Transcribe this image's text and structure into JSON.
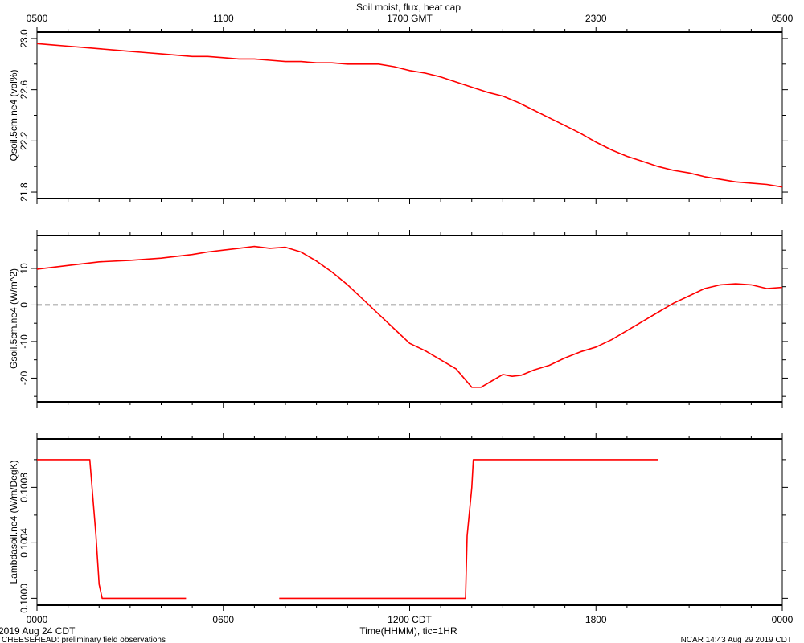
{
  "chart_data": {
    "title": "Soil moist, flux, heat cap",
    "top_axis": {
      "tick_labels": [
        "0500",
        "1100",
        "1700 GMT",
        "2300",
        "0500"
      ],
      "tick_hours": [
        0,
        6,
        12,
        18,
        24
      ]
    },
    "bottom_axis": {
      "tick_labels": [
        "0000",
        "0600",
        "1200 CDT",
        "1800",
        "0000"
      ],
      "tick_hours": [
        0,
        6,
        12,
        18,
        24
      ],
      "xlabel": "Time(HHMM), tic=1HR",
      "xlim": [
        0,
        24
      ]
    },
    "footer": {
      "date": "2019 Aug 24 CDT",
      "project": "CHEESEHEAD: preliminary field observations",
      "credit": "NCAR 14:43 Aug 29 2019 CDT"
    },
    "line_color": "#ff0000",
    "panels": [
      {
        "type": "line",
        "ylabel": "Qsoil.5cm.ne4 (vol%)",
        "ylim": [
          21.75,
          23.05
        ],
        "yticks": [
          21.8,
          22.2,
          22.6,
          23.0
        ],
        "ytick_labels": [
          "21.8",
          "22.2",
          "22.6",
          "23.0"
        ],
        "zero_line": false,
        "segments": [
          {
            "x": [
              0,
              0.5,
              1,
              1.5,
              2,
              2.5,
              3,
              3.5,
              4,
              4.5,
              5,
              5.5,
              6,
              6.5,
              7,
              7.5,
              8,
              8.5,
              9,
              9.5,
              10,
              10.5,
              11,
              11.5,
              12,
              12.5,
              13,
              13.5,
              14,
              14.5,
              15,
              15.5,
              16,
              16.5,
              17,
              17.5,
              18,
              18.5,
              19,
              19.5,
              20,
              20.5,
              21,
              21.5,
              22,
              22.5,
              23,
              23.5,
              24
            ],
            "y": [
              22.96,
              22.95,
              22.94,
              22.93,
              22.92,
              22.91,
              22.9,
              22.89,
              22.88,
              22.87,
              22.86,
              22.86,
              22.85,
              22.84,
              22.84,
              22.83,
              22.82,
              22.82,
              22.81,
              22.81,
              22.8,
              22.8,
              22.8,
              22.78,
              22.75,
              22.73,
              22.7,
              22.66,
              22.62,
              22.58,
              22.55,
              22.5,
              22.44,
              22.38,
              22.32,
              22.26,
              22.19,
              22.13,
              22.08,
              22.04,
              22.0,
              21.97,
              21.95,
              21.92,
              21.9,
              21.88,
              21.87,
              21.86,
              21.84
            ]
          }
        ]
      },
      {
        "type": "line",
        "ylabel": "Gsoil.5cm.ne4 (W/m^2)",
        "ylim": [
          -26.5,
          19
        ],
        "yticks": [
          -20,
          -10,
          0,
          10
        ],
        "ytick_labels": [
          "-20",
          "-10",
          "0",
          "10"
        ],
        "zero_line": true,
        "segments": [
          {
            "x": [
              0,
              1,
              2,
              3,
              4,
              5,
              5.5,
              6,
              6.5,
              7,
              7.5,
              8,
              8.5,
              9,
              9.5,
              10,
              10.5,
              11,
              11.5,
              12,
              12.5,
              13,
              13.5,
              13.8,
              14,
              14.3,
              14.6,
              15,
              15.3,
              15.6,
              16,
              16.5,
              17,
              17.5,
              18,
              18.5,
              19,
              19.5,
              20,
              20.5,
              21,
              21.5,
              22,
              22.5,
              23,
              23.5,
              24
            ],
            "y": [
              9.8,
              10.8,
              11.8,
              12.2,
              12.8,
              13.8,
              14.5,
              15,
              15.5,
              16,
              15.5,
              15.8,
              14.5,
              12,
              9,
              5.5,
              1.5,
              -2.5,
              -6.5,
              -10.5,
              -12.5,
              -15,
              -17.5,
              -20.5,
              -22.5,
              -22.5,
              -21,
              -19,
              -19.5,
              -19.2,
              -17.8,
              -16.5,
              -14.5,
              -12.8,
              -11.5,
              -9.5,
              -7,
              -4.5,
              -2,
              0.5,
              2.5,
              4.5,
              5.5,
              5.8,
              5.5,
              4.5,
              4.8
            ]
          }
        ]
      },
      {
        "type": "line",
        "ylabel": "Lambdasoil.ne4 (W/m/DegK)",
        "ylim": [
          0.09995,
          0.10115
        ],
        "yticks": [
          0.1,
          0.1004,
          0.1008
        ],
        "ytick_labels": [
          "0.1000",
          "0.1004",
          "0.1008"
        ],
        "zero_line": false,
        "segments": [
          {
            "x": [
              0,
              1.7,
              1.9,
              2.0,
              2.1,
              4.8
            ],
            "y": [
              0.101,
              0.101,
              0.10045,
              0.1001,
              0.1,
              0.1
            ]
          },
          {
            "x": [
              7.8,
              13.8,
              13.85,
              14.0,
              14.05,
              14.1,
              20.0
            ],
            "y": [
              0.1,
              0.1,
              0.10045,
              0.1008,
              0.101,
              0.101,
              0.101
            ]
          }
        ]
      }
    ]
  }
}
